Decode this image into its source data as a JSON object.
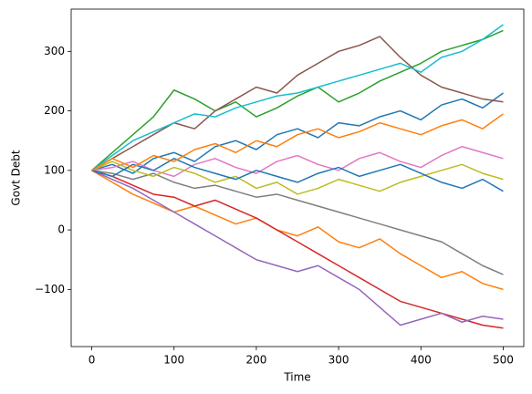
{
  "chart_data": {
    "type": "line",
    "xlabel": "Time",
    "ylabel": "Govt Debt",
    "x": [
      0,
      25,
      50,
      75,
      100,
      125,
      150,
      175,
      200,
      225,
      250,
      275,
      300,
      325,
      350,
      375,
      400,
      425,
      450,
      475,
      500
    ],
    "series": [
      {
        "color": "#1f77b4",
        "values": [
          100,
          110,
          95,
          120,
          130,
          115,
          140,
          150,
          135,
          160,
          170,
          155,
          180,
          175,
          190,
          200,
          185,
          210,
          220,
          205,
          230
        ]
      },
      {
        "color": "#ff7f0e",
        "values": [
          100,
          80,
          60,
          45,
          30,
          40,
          25,
          10,
          20,
          0,
          -10,
          5,
          -20,
          -30,
          -15,
          -40,
          -60,
          -80,
          -70,
          -90,
          -100
        ]
      },
      {
        "color": "#2ca02c",
        "values": [
          100,
          130,
          160,
          190,
          235,
          220,
          200,
          215,
          190,
          205,
          225,
          240,
          215,
          230,
          250,
          265,
          280,
          300,
          310,
          320,
          335
        ]
      },
      {
        "color": "#d62728",
        "values": [
          100,
          90,
          75,
          60,
          55,
          40,
          50,
          35,
          20,
          0,
          -20,
          -40,
          -60,
          -80,
          -100,
          -120,
          -130,
          -140,
          -150,
          -160,
          -165
        ]
      },
      {
        "color": "#9467bd",
        "values": [
          100,
          85,
          70,
          50,
          30,
          10,
          -10,
          -30,
          -50,
          -60,
          -70,
          -60,
          -80,
          -100,
          -130,
          -160,
          -150,
          -140,
          -155,
          -145,
          -150
        ]
      },
      {
        "color": "#8c564b",
        "values": [
          100,
          120,
          140,
          160,
          180,
          170,
          200,
          220,
          240,
          230,
          260,
          280,
          300,
          310,
          325,
          290,
          260,
          240,
          230,
          220,
          215
        ]
      },
      {
        "color": "#e377c2",
        "values": [
          100,
          105,
          115,
          100,
          90,
          110,
          120,
          105,
          95,
          115,
          125,
          110,
          100,
          120,
          130,
          115,
          105,
          125,
          140,
          130,
          120
        ]
      },
      {
        "color": "#7f7f7f",
        "values": [
          100,
          95,
          85,
          95,
          80,
          70,
          75,
          65,
          55,
          60,
          50,
          40,
          30,
          20,
          10,
          0,
          -10,
          -20,
          -40,
          -60,
          -75
        ]
      },
      {
        "color": "#bcbd22",
        "values": [
          100,
          115,
          100,
          90,
          105,
          95,
          80,
          90,
          70,
          80,
          60,
          70,
          85,
          75,
          65,
          80,
          90,
          100,
          110,
          95,
          85
        ]
      },
      {
        "color": "#17becf",
        "values": [
          100,
          125,
          150,
          165,
          180,
          195,
          190,
          205,
          215,
          225,
          230,
          240,
          250,
          260,
          270,
          280,
          265,
          290,
          300,
          320,
          345
        ]
      },
      {
        "color": "#1f77b4",
        "values": [
          100,
          90,
          110,
          100,
          120,
          105,
          95,
          85,
          100,
          90,
          80,
          95,
          105,
          90,
          100,
          110,
          95,
          80,
          70,
          85,
          65
        ]
      },
      {
        "color": "#ff7f0e",
        "values": [
          100,
          120,
          105,
          125,
          115,
          135,
          145,
          130,
          150,
          140,
          160,
          170,
          155,
          165,
          180,
          170,
          160,
          175,
          185,
          170,
          195
        ]
      }
    ],
    "xlim": [
      -25,
      525
    ],
    "ylim": [
      -196,
      371
    ],
    "xticks": [
      0,
      100,
      200,
      300,
      400,
      500
    ],
    "yticks": [
      {
        "value": -100,
        "label": "−100"
      },
      0,
      100,
      200,
      300
    ]
  }
}
